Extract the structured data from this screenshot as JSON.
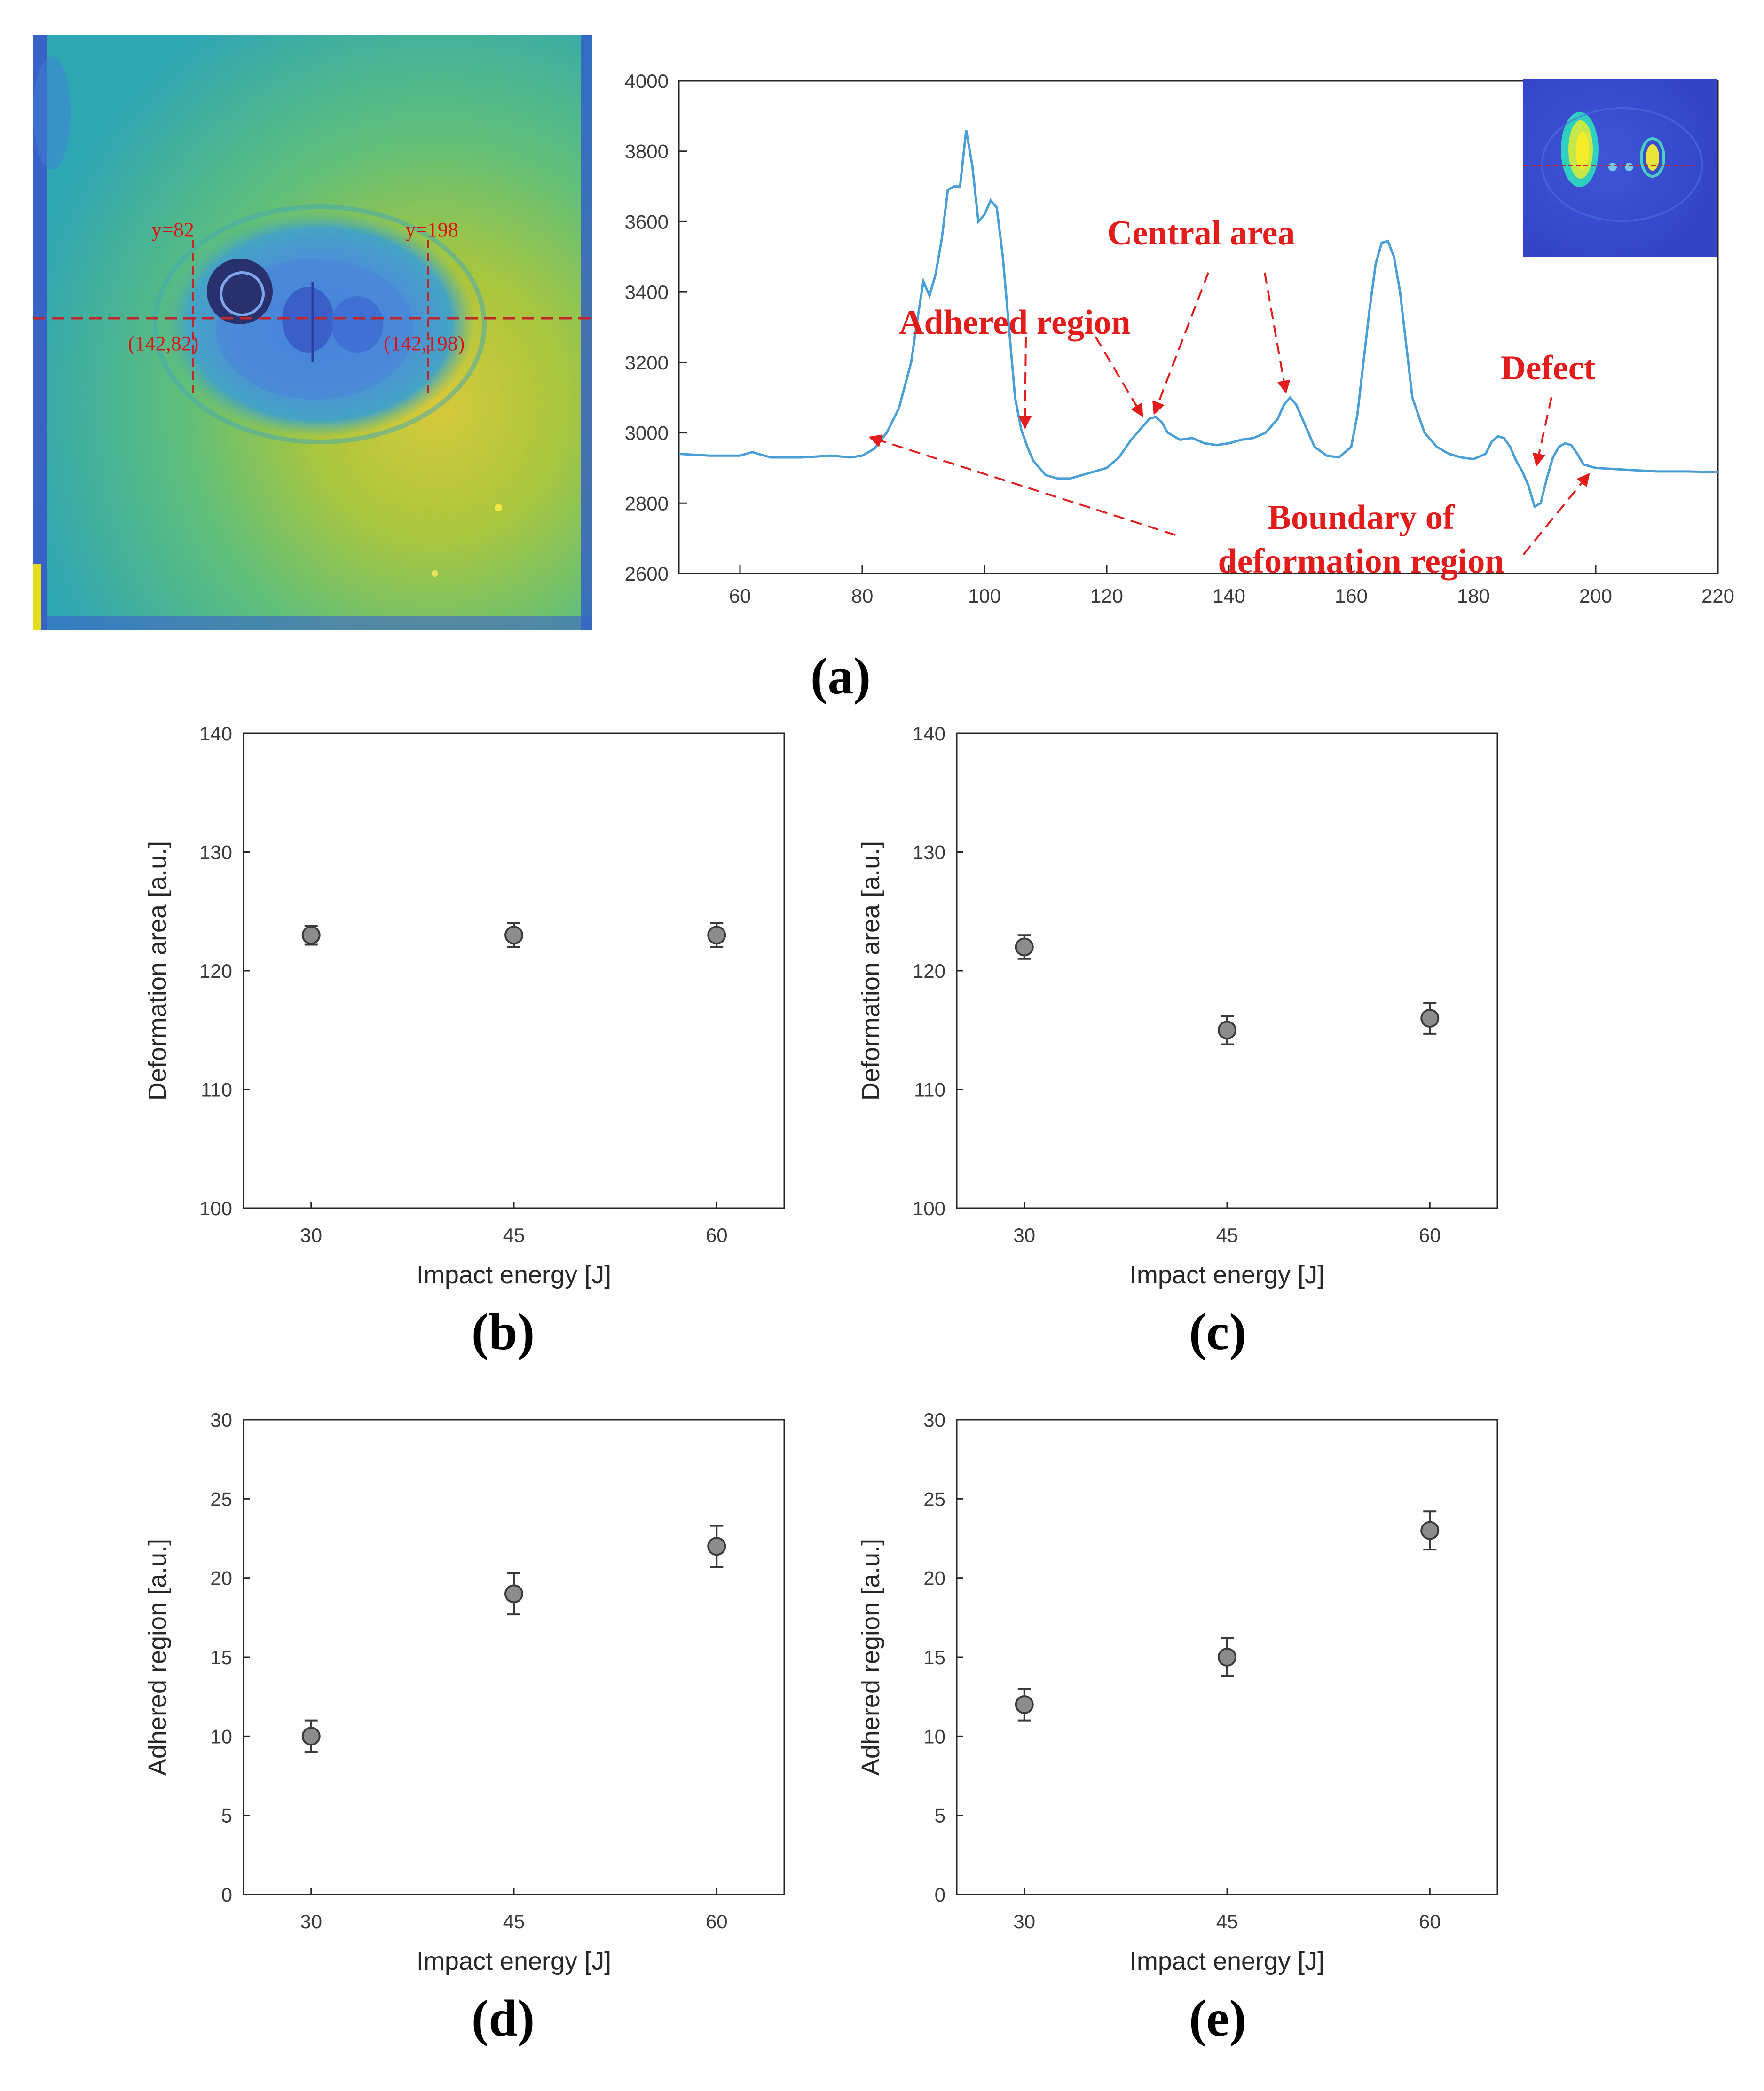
{
  "figure_labels": [
    "(a)",
    "(b)",
    "(c)",
    "(d)",
    "(e)"
  ],
  "thermogram": {
    "label_y82": "y=82",
    "label_y198": "y=198",
    "coord_left": "(142,82)",
    "coord_right": "(142,198)"
  },
  "annotations": {
    "adhered": "Adhered region",
    "central": "Central area",
    "defect": "Defect",
    "boundary_line1": "Boundary of",
    "boundary_line2": "deformation region"
  },
  "chart_data": [
    {
      "id": "a",
      "type": "line",
      "title": "",
      "xlabel": "",
      "ylabel": "",
      "xlim": [
        50,
        220
      ],
      "ylim": [
        2600,
        4000
      ],
      "xticks": [
        60,
        80,
        100,
        120,
        140,
        160,
        180,
        200,
        220
      ],
      "yticks": [
        2600,
        2800,
        3000,
        3200,
        3400,
        3600,
        3800,
        4000
      ],
      "color": "#4a9ed6",
      "x": [
        50,
        55,
        60,
        62,
        65,
        70,
        75,
        78,
        80,
        82,
        84,
        86,
        88,
        89,
        90,
        91,
        92,
        93,
        94,
        95,
        96,
        97,
        98,
        99,
        100,
        101,
        102,
        103,
        104,
        105,
        106,
        107,
        108,
        110,
        112,
        114,
        116,
        118,
        120,
        122,
        124,
        126,
        127,
        128,
        129,
        130,
        132,
        134,
        136,
        138,
        140,
        142,
        144,
        146,
        148,
        149,
        150,
        151,
        152,
        154,
        156,
        158,
        160,
        161,
        162,
        163,
        164,
        165,
        166,
        167,
        168,
        169,
        170,
        172,
        174,
        176,
        178,
        180,
        182,
        183,
        184,
        185,
        186,
        187,
        188,
        189,
        190,
        191,
        192,
        193,
        194,
        195,
        196,
        197,
        198,
        200,
        205,
        210,
        215,
        220
      ],
      "y": [
        2940,
        2935,
        2935,
        2945,
        2930,
        2930,
        2935,
        2930,
        2935,
        2955,
        3000,
        3070,
        3200,
        3320,
        3430,
        3390,
        3450,
        3550,
        3690,
        3700,
        3700,
        3860,
        3760,
        3600,
        3620,
        3660,
        3640,
        3500,
        3300,
        3100,
        3010,
        2960,
        2920,
        2880,
        2870,
        2870,
        2880,
        2890,
        2900,
        2930,
        2980,
        3020,
        3040,
        3045,
        3030,
        3000,
        2980,
        2985,
        2970,
        2965,
        2970,
        2980,
        2985,
        3000,
        3040,
        3080,
        3100,
        3080,
        3040,
        2960,
        2935,
        2930,
        2960,
        3050,
        3200,
        3350,
        3480,
        3540,
        3545,
        3500,
        3400,
        3250,
        3100,
        3000,
        2960,
        2940,
        2930,
        2925,
        2940,
        2975,
        2990,
        2985,
        2960,
        2920,
        2890,
        2850,
        2790,
        2800,
        2870,
        2930,
        2960,
        2970,
        2965,
        2940,
        2910,
        2900,
        2895,
        2890,
        2890,
        2888
      ]
    },
    {
      "id": "b",
      "type": "scatter",
      "xlabel": "Impact energy [J]",
      "ylabel": "Deformation area [a.u.]",
      "categories": [
        "30",
        "45",
        "60"
      ],
      "values": [
        123,
        123,
        123
      ],
      "errors": [
        0.8,
        1.0,
        1.0
      ],
      "ylim": [
        100,
        140
      ],
      "yticks": [
        100,
        110,
        120,
        130,
        140
      ]
    },
    {
      "id": "c",
      "type": "scatter",
      "xlabel": "Impact energy [J]",
      "ylabel": "Deformation area [a.u.]",
      "categories": [
        "30",
        "45",
        "60"
      ],
      "values": [
        122,
        115,
        116
      ],
      "errors": [
        1.0,
        1.2,
        1.3
      ],
      "ylim": [
        100,
        140
      ],
      "yticks": [
        100,
        110,
        120,
        130,
        140
      ]
    },
    {
      "id": "d",
      "type": "scatter",
      "xlabel": "Impact energy [J]",
      "ylabel": "Adhered region [a.u.]",
      "categories": [
        "30",
        "45",
        "60"
      ],
      "values": [
        10,
        19,
        22
      ],
      "errors": [
        1.0,
        1.3,
        1.3
      ],
      "ylim": [
        0,
        30
      ],
      "yticks": [
        0,
        5,
        10,
        15,
        20,
        25,
        30
      ]
    },
    {
      "id": "e",
      "type": "scatter",
      "xlabel": "Impact energy [J]",
      "ylabel": "Adhered region [a.u.]",
      "categories": [
        "30",
        "45",
        "60"
      ],
      "values": [
        12,
        15,
        23
      ],
      "errors": [
        1.0,
        1.2,
        1.2
      ],
      "ylim": [
        0,
        30
      ],
      "yticks": [
        0,
        5,
        10,
        15,
        20,
        25,
        30
      ]
    }
  ]
}
